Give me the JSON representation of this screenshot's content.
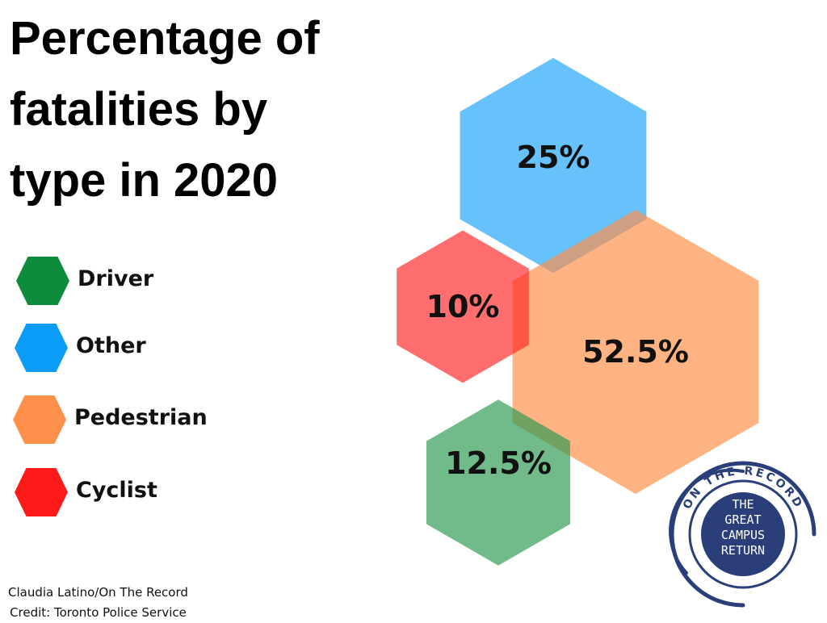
{
  "chart_data": {
    "type": "hexagon",
    "title": "Percentage of fatalities by type in 2020",
    "title_lines": [
      "Percentage of",
      "fatalities by",
      "type in 2020"
    ],
    "categories": [
      "Driver",
      "Other",
      "Pedestrian",
      "Cyclist"
    ],
    "values": [
      12.5,
      25,
      52.5,
      10
    ],
    "data_labels": [
      "12.5%",
      "25%",
      "52.5%",
      "10%"
    ],
    "unit": "%",
    "colors": [
      "#2e9a52",
      "#1fa4f8",
      "#ff8f48",
      "#ff2a2a"
    ],
    "legend_colors": [
      "#0d8a3c",
      "#0a9cf6",
      "#ff904c",
      "#ff1a1a"
    ],
    "legend_placement": "left"
  },
  "credit": {
    "author": "Claudia Latino/On The Record",
    "source": "Credit: Toronto Police Service"
  },
  "logo": {
    "ring_text": "ON THE RECORD",
    "center_lines": [
      "THE",
      "GREAT",
      "CAMPUS",
      "RETURN"
    ],
    "color": "#2a3f7a"
  }
}
